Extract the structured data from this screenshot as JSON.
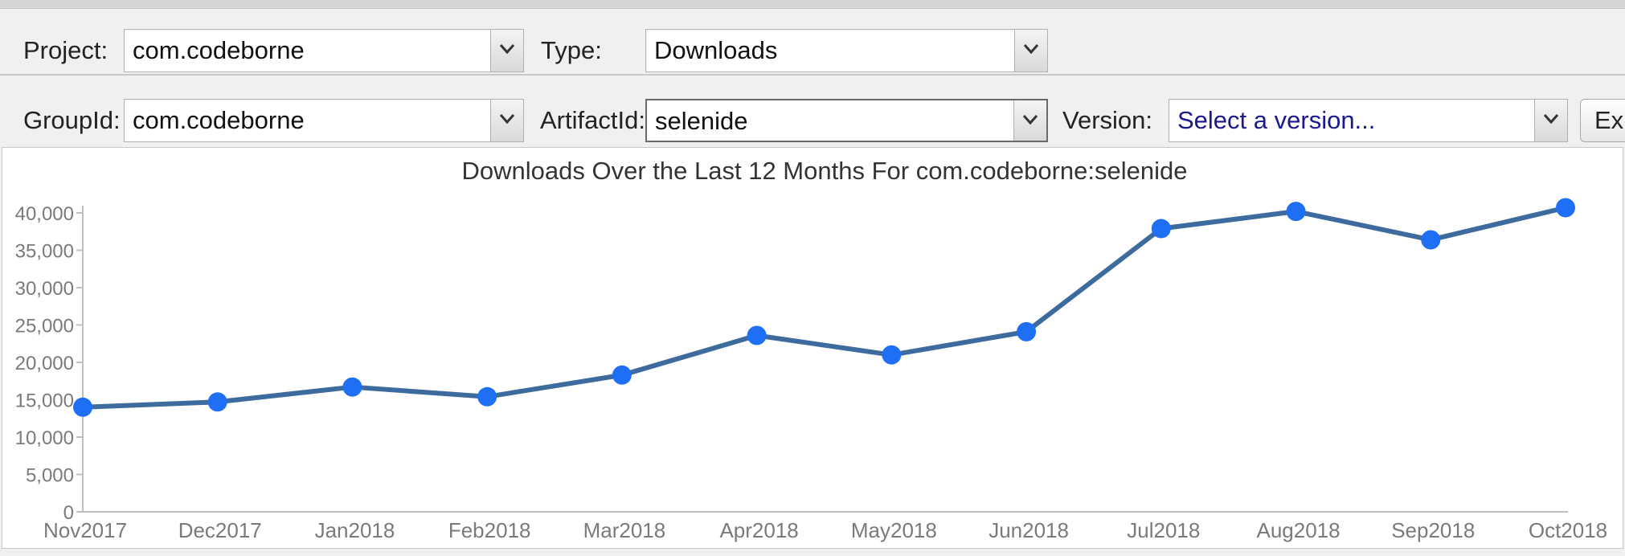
{
  "toolbar": {
    "row1": {
      "project_label": "Project:",
      "project_value": "com.codeborne",
      "type_label": "Type:",
      "type_value": "Downloads"
    },
    "row2": {
      "groupid_label": "GroupId:",
      "groupid_value": "com.codeborne",
      "artifactid_label": "ArtifactId:",
      "artifactid_value": "selenide",
      "version_label": "Version:",
      "version_placeholder": "Select a version...",
      "export_label": "Exp"
    },
    "icons": {
      "dropdown": "chevron-down-icon"
    },
    "colors": {
      "placeholder_text": "#1a1a8c"
    }
  },
  "chart_data": {
    "type": "line",
    "title": "Downloads Over the Last 12 Months For com.codeborne:selenide",
    "categories": [
      "Nov2017",
      "Dec2017",
      "Jan2018",
      "Feb2018",
      "Mar2018",
      "Apr2018",
      "May2018",
      "Jun2018",
      "Jul2018",
      "Aug2018",
      "Sep2018",
      "Oct2018"
    ],
    "series": [
      {
        "values": [
          14000,
          14700,
          16700,
          15400,
          18300,
          23600,
          21000,
          24100,
          37900,
          40200,
          36400,
          40700
        ]
      }
    ],
    "ylim": [
      0,
      40000
    ],
    "yticks": [
      0,
      5000,
      10000,
      15000,
      20000,
      25000,
      30000,
      35000,
      40000
    ],
    "ytick_labels": [
      "0",
      "5,000",
      "10,000",
      "15,000",
      "20,000",
      "25,000",
      "30,000",
      "35,000",
      "40,000"
    ],
    "grid": false,
    "legend": "none",
    "colors": {
      "line": "#3d6b9e",
      "marker": "#1f6ff5",
      "axis": "#bfbfbf",
      "tick_text": "#7a7a7a",
      "title_text": "#333333"
    }
  }
}
